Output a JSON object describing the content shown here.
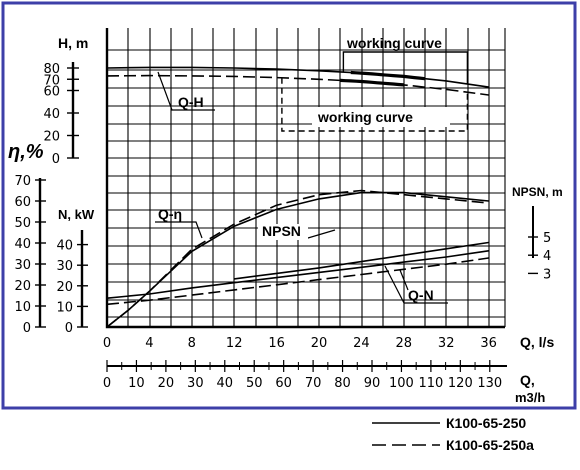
{
  "chart_data": {
    "type": "line",
    "border_color": "#3d3fa8",
    "y_left": {
      "H": {
        "label": "H, m",
        "ticks": [
          "80",
          "70",
          "60",
          "40",
          "20",
          "0"
        ]
      },
      "eta": {
        "label": "η,%",
        "ticks": [
          "70",
          "60",
          "50",
          "40",
          "30",
          "20",
          "10",
          "0"
        ]
      },
      "N": {
        "label": "N, kW",
        "ticks": [
          "40",
          "30",
          "20",
          "10",
          "0"
        ]
      }
    },
    "y_right": {
      "NPSN": {
        "label": "NPSN, m",
        "ticks": [
          "5",
          "4",
          "3"
        ]
      }
    },
    "x_axes": [
      {
        "label": "Q, l/s",
        "ticks": [
          "0",
          "4",
          "8",
          "12",
          "16",
          "20",
          "24",
          "28",
          "32",
          "36"
        ]
      },
      {
        "label": "Q,",
        "label2": "m3/h",
        "ticks": [
          "0",
          "10",
          "20",
          "30",
          "40",
          "50",
          "60",
          "70",
          "80",
          "90",
          "100",
          "110",
          "120",
          "130"
        ]
      }
    ],
    "annotations": [
      "working curve",
      "working curve",
      "Q-H",
      "Q-η",
      "NPSN",
      "Q-N"
    ],
    "series": [
      {
        "name": "K100-65-250",
        "style": "solid",
        "QH": {
          "x": [
            0,
            4,
            8,
            12,
            16,
            20,
            24,
            28,
            32,
            36
          ],
          "y": [
            80,
            80.5,
            80.5,
            80,
            79,
            77.5,
            75.5,
            72.5,
            68.5,
            63
          ]
        },
        "Qeta": {
          "x": [
            0,
            2,
            4,
            8,
            12,
            16,
            20,
            24,
            28,
            32,
            36
          ],
          "y": [
            0,
            8,
            17,
            36,
            48,
            56,
            61,
            64,
            64,
            62,
            60
          ]
        },
        "QN": {
          "x": [
            0,
            4,
            8,
            12,
            16,
            20,
            24,
            28,
            32,
            36
          ],
          "y": [
            14,
            16,
            19,
            21.5,
            24,
            26.5,
            29,
            31.5,
            34,
            37
          ]
        },
        "NPSN": {
          "x": [
            12,
            16,
            20,
            24,
            28,
            32,
            36
          ],
          "y": [
            2.7,
            3.0,
            3.3,
            3.65,
            4.0,
            4.35,
            4.7
          ]
        }
      },
      {
        "name": "K100-65-250a",
        "style": "dashed",
        "QH": {
          "x": [
            0,
            4,
            8,
            12,
            16,
            20,
            24,
            28,
            32,
            36
          ],
          "y": [
            73,
            73.2,
            73,
            72.5,
            71.5,
            70,
            68,
            65,
            61,
            56
          ]
        },
        "Qeta": {
          "x": [
            0,
            2,
            4,
            8,
            12,
            16,
            20,
            24,
            28,
            32,
            36
          ],
          "y": [
            0,
            8,
            17,
            37,
            49,
            58,
            63,
            65,
            63,
            61,
            59
          ]
        },
        "QN": {
          "x": [
            0,
            4,
            8,
            12,
            16,
            20,
            24,
            28,
            32,
            36
          ],
          "y": [
            11,
            13,
            15.5,
            18,
            20.5,
            23,
            25.5,
            28,
            30.5,
            33.5
          ]
        }
      }
    ],
    "working_ranges": [
      {
        "series": "K100-65-250",
        "from": 23,
        "to": 30
      },
      {
        "series": "K100-65-250a",
        "from": 22,
        "to": 28
      }
    ],
    "legend": [
      {
        "label": "К100-65-250",
        "style": "solid"
      },
      {
        "label": "К100-65-250а",
        "style": "dashed"
      }
    ],
    "grid": true
  }
}
